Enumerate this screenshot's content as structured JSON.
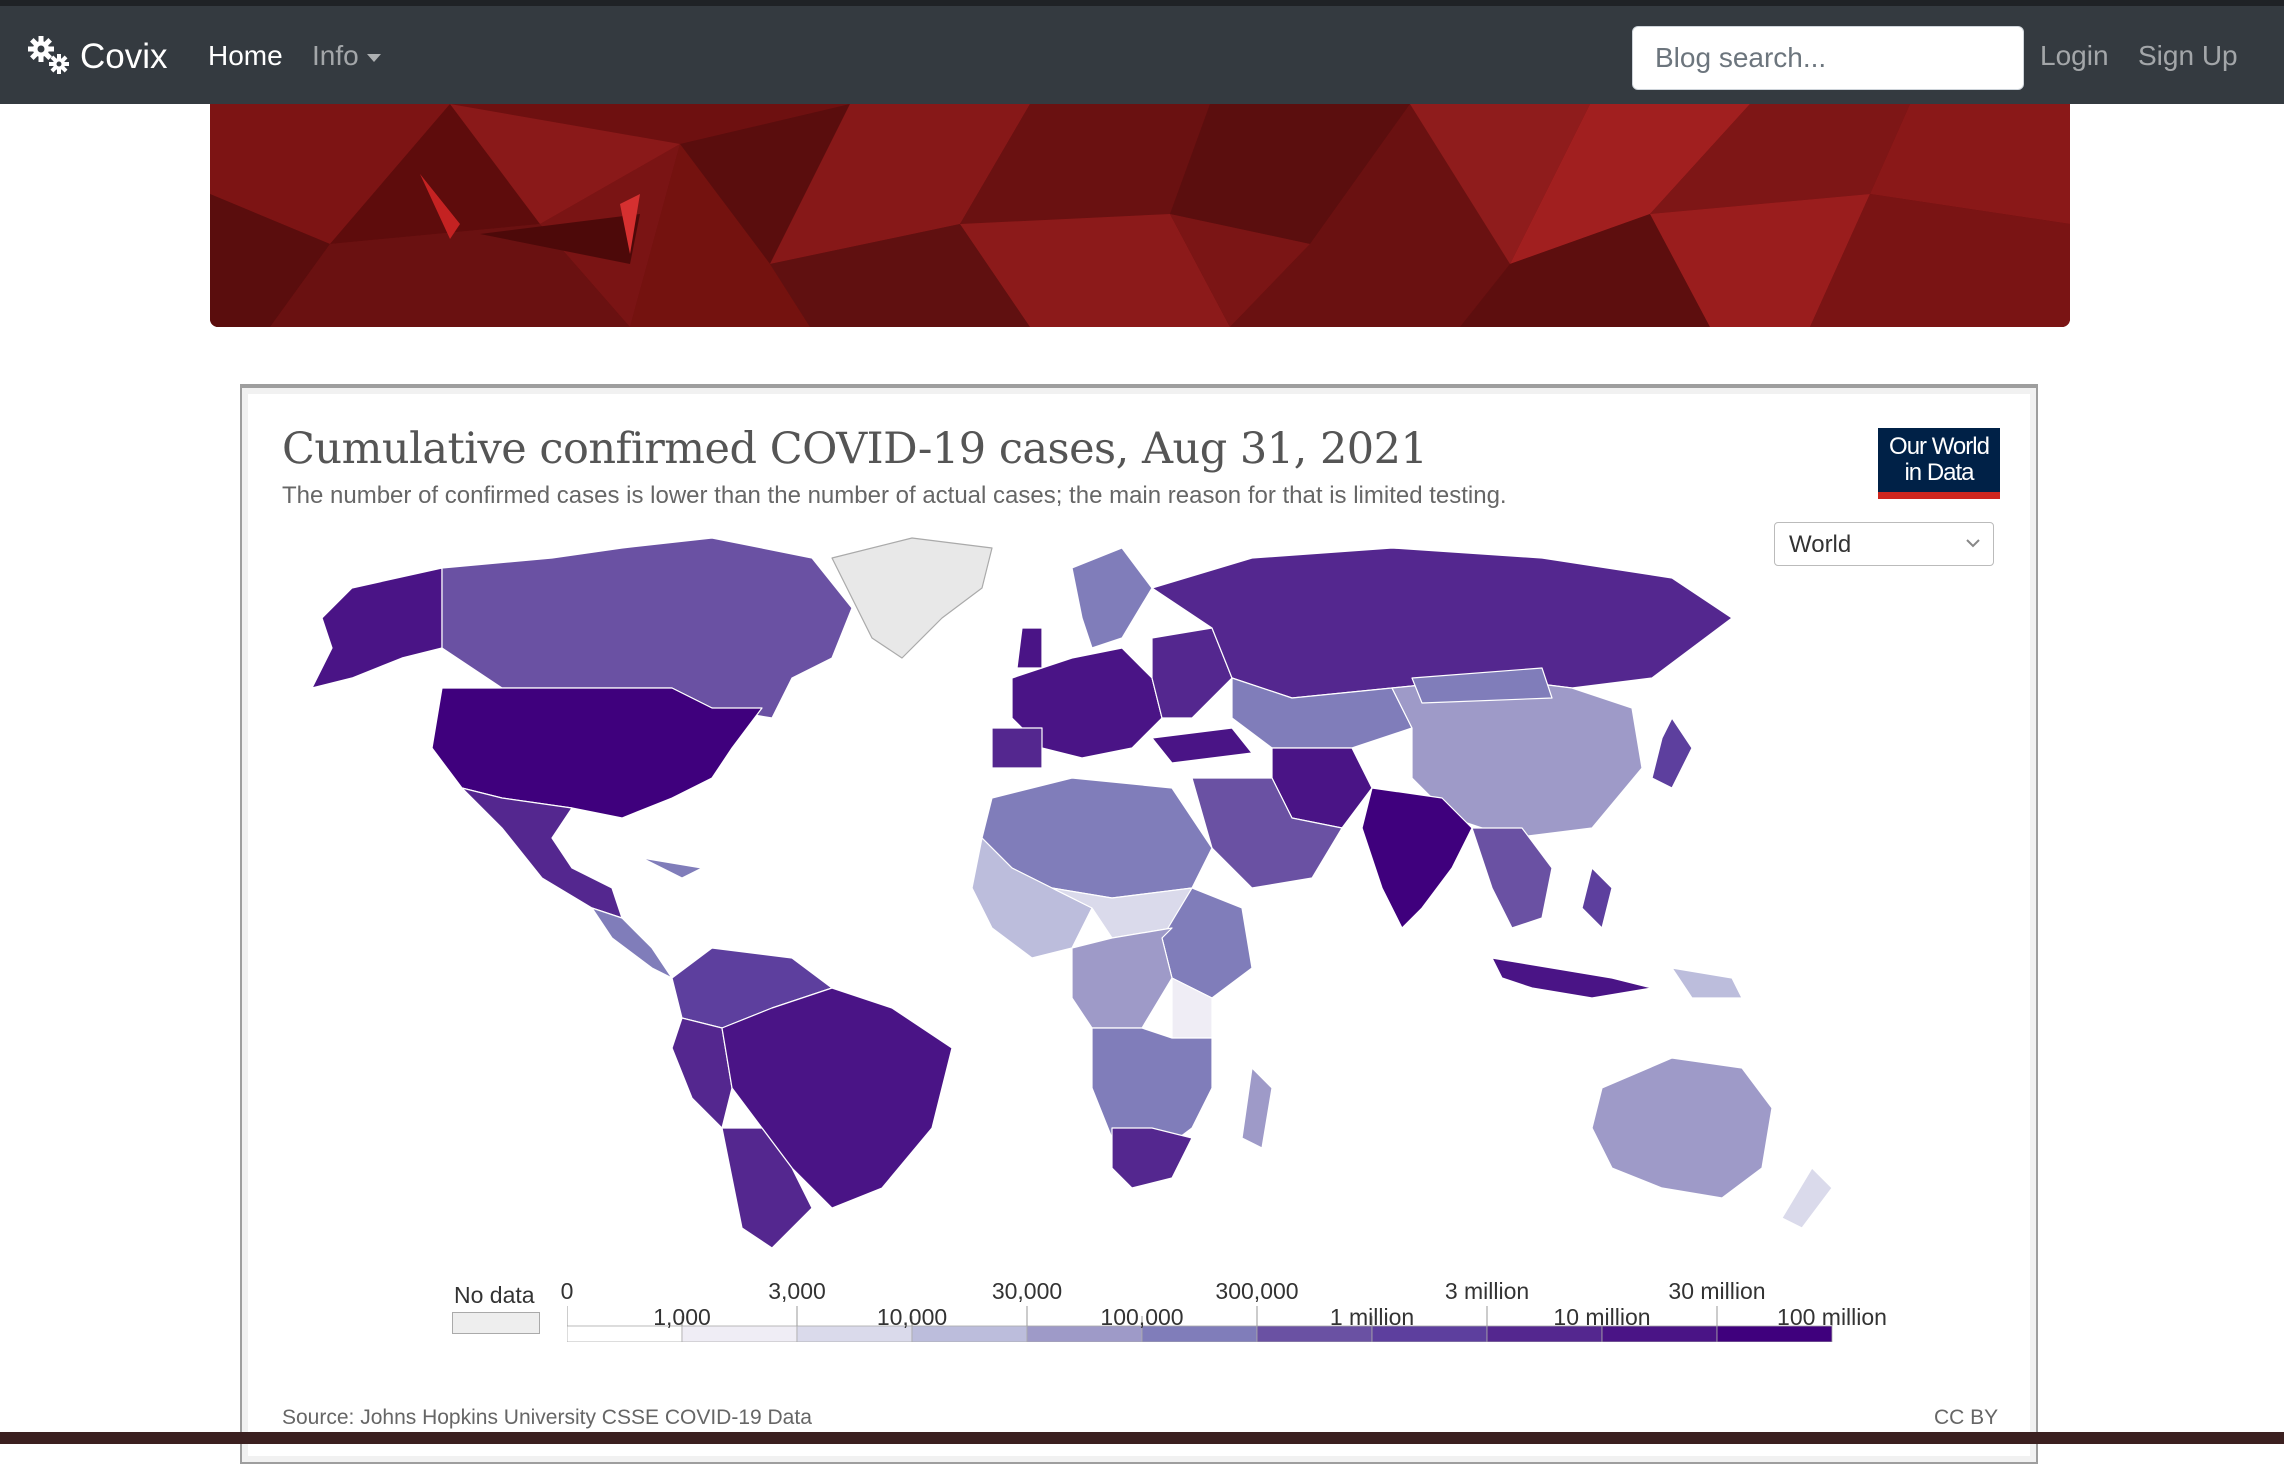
{
  "navbar": {
    "brand": "Covix",
    "brand_icon": "gears-icon",
    "links": {
      "home": "Home",
      "info": "Info",
      "login": "Login",
      "signup": "Sign Up"
    },
    "search_placeholder": "Blog search..."
  },
  "banner": {
    "colors": [
      "#6e1010",
      "#8b1a1a",
      "#5a0d0d",
      "#a31e1e",
      "#7a1414"
    ]
  },
  "chart": {
    "title": "Cumulative confirmed COVID-19 cases, Aug 31, 2021",
    "subtitle": "The number of confirmed cases is lower than the number of actual cases; the main reason for that is limited testing.",
    "logo_line1": "Our World",
    "logo_line2": "in Data",
    "region": "World",
    "source": "Source: Johns Hopkins University CSSE COVID-19 Data",
    "license": "CC BY",
    "legend": {
      "no_data": "No data",
      "no_data_color": "#eeeeee",
      "upper_labels": [
        "0",
        "3,000",
        "30,000",
        "300,000",
        "3 million",
        "30 million"
      ],
      "lower_labels": [
        "1,000",
        "10,000",
        "100,000",
        "1 million",
        "10 million",
        "100 million"
      ],
      "colors": [
        "#ffffff",
        "#efedf5",
        "#dadaeb",
        "#bcbddc",
        "#9e9ac8",
        "#807dba",
        "#6a51a3",
        "#5d3f9e",
        "#54278f",
        "#4a1486",
        "#3f007d"
      ]
    }
  }
}
